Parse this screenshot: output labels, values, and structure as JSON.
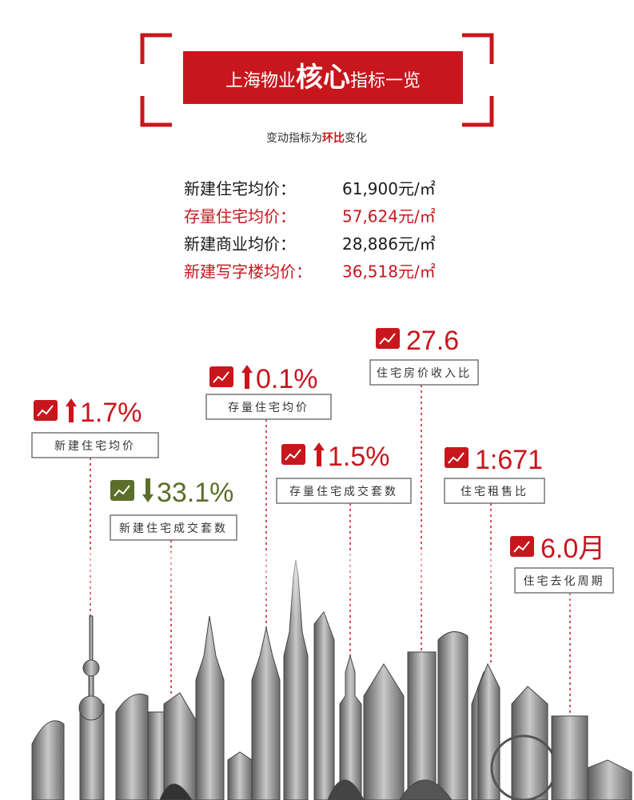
{
  "header": {
    "title_before": "上海物业",
    "title_highlight": "核心",
    "title_after": "指标一览",
    "subtitle_before": "变动指标为",
    "subtitle_highlight": "环比",
    "subtitle_after": "变化"
  },
  "prices": [
    {
      "label": "新建住宅均价：",
      "value": "61,900元/㎡",
      "color": "#1a1a1a"
    },
    {
      "label": "存量住宅均价：",
      "value": "57,624元/㎡",
      "color": "#c8161d"
    },
    {
      "label": "新建商业均价：",
      "value": "28,886元/㎡",
      "color": "#1a1a1a"
    },
    {
      "label": "新建写字楼均价：",
      "value": "36,518元/㎡",
      "color": "#c8161d"
    }
  ],
  "indicators": [
    {
      "value": "1.7%",
      "label": "新建住宅均价",
      "direction": "up",
      "color": "#c8161d"
    },
    {
      "value": "33.1%",
      "label": "新建住宅成交套数",
      "direction": "down",
      "color": "#5b6e2a"
    },
    {
      "value": "0.1%",
      "label": "存量住宅均价",
      "direction": "up",
      "color": "#c8161d"
    },
    {
      "value": "1.5%",
      "label": "存量住宅成交套数",
      "direction": "up",
      "color": "#c8161d"
    },
    {
      "value": "27.6",
      "label": "住宅房价收入比",
      "direction": null,
      "color": "#c8161d"
    },
    {
      "value": "1:671",
      "label": "住宅租售比",
      "direction": null,
      "color": "#c8161d"
    },
    {
      "value": "6.0月",
      "label": "住宅去化周期",
      "direction": null,
      "color": "#c8161d"
    }
  ]
}
